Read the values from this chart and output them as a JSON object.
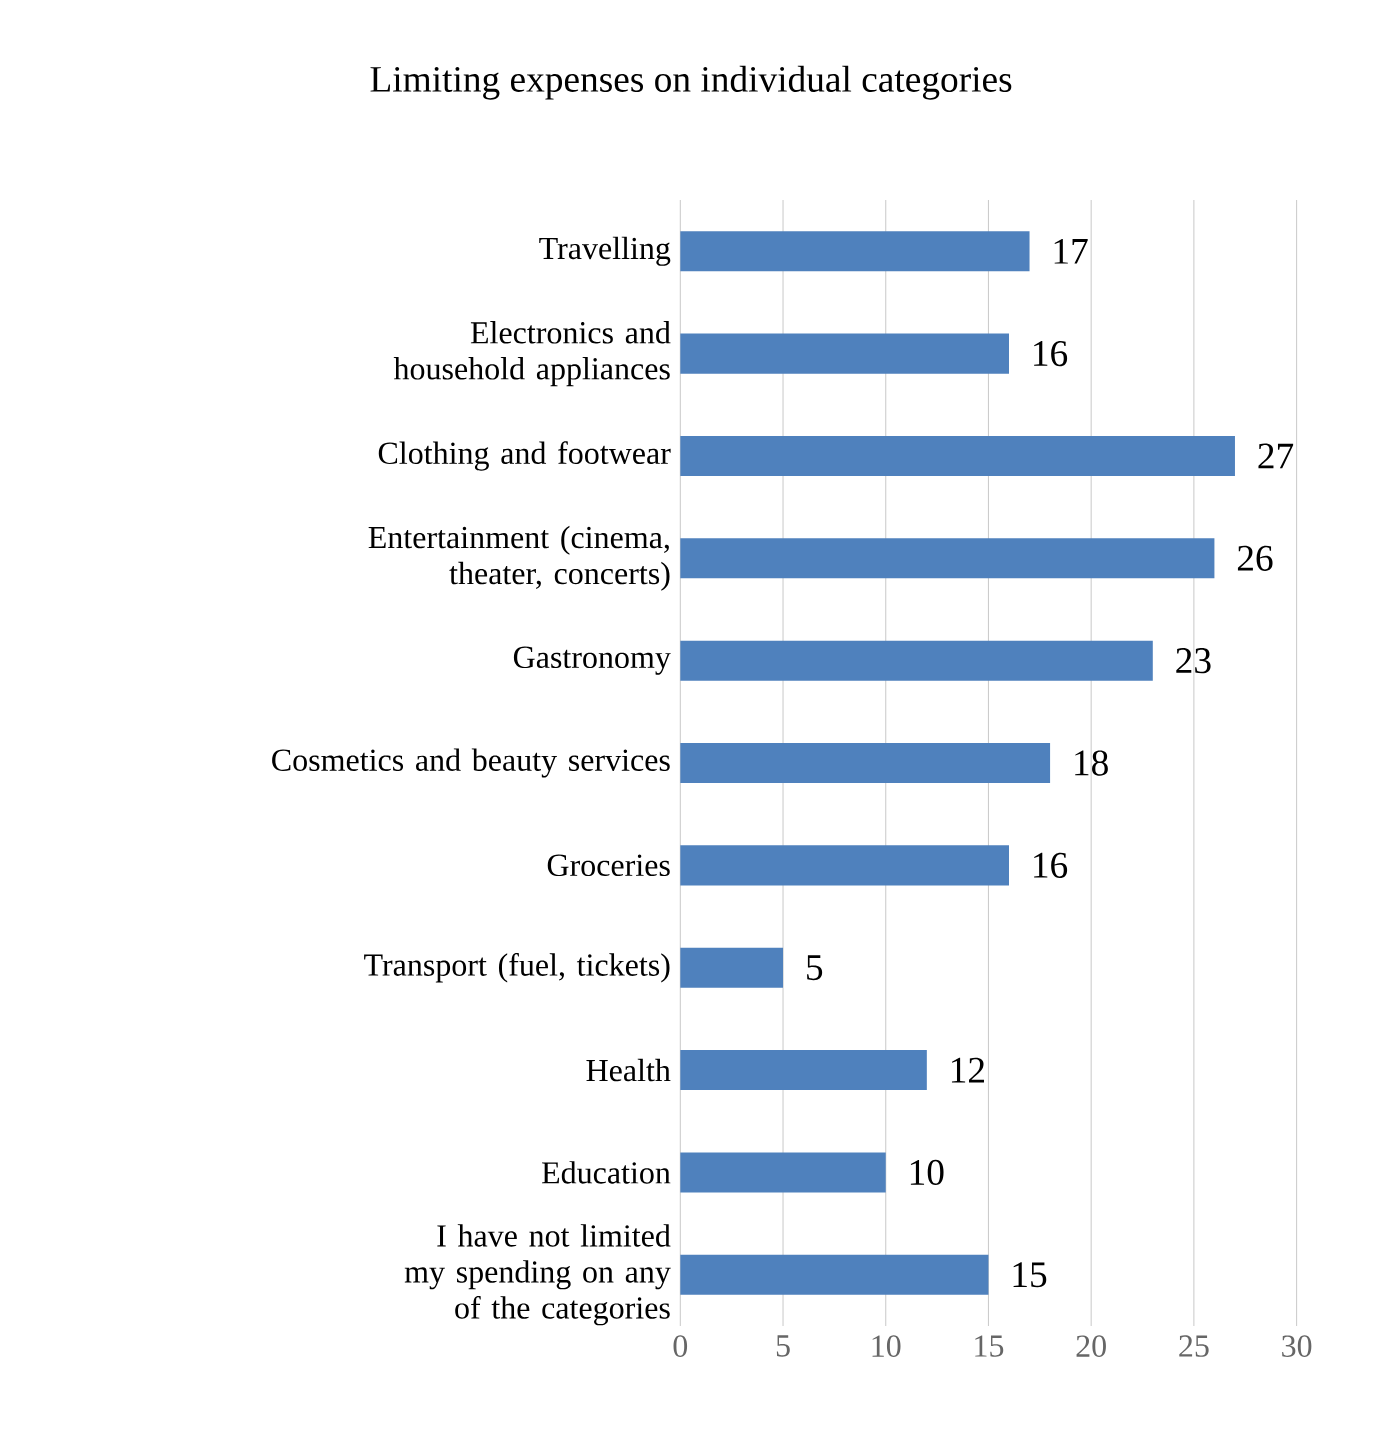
{
  "chart_data": {
    "type": "bar",
    "orientation": "horizontal",
    "title": "Limiting expenses on individual categories",
    "categories": [
      "Travelling",
      "Electronics and household appliances",
      "Clothing and footwear",
      "Entertainment (cinema, theater, concerts)",
      "Gastronomy",
      "Cosmetics and beauty services",
      "Groceries",
      "Transport (fuel, tickets)",
      "Health",
      "Education",
      "I have not limited my spending on any of the categories"
    ],
    "values": [
      17,
      16,
      27,
      26,
      23,
      18,
      16,
      5,
      12,
      10,
      15
    ],
    "color": "#4f81bd",
    "xlim": [
      0,
      30
    ],
    "xticks": [
      0,
      5,
      10,
      15,
      20,
      25,
      30
    ],
    "grid": "x",
    "data_labels": true
  }
}
